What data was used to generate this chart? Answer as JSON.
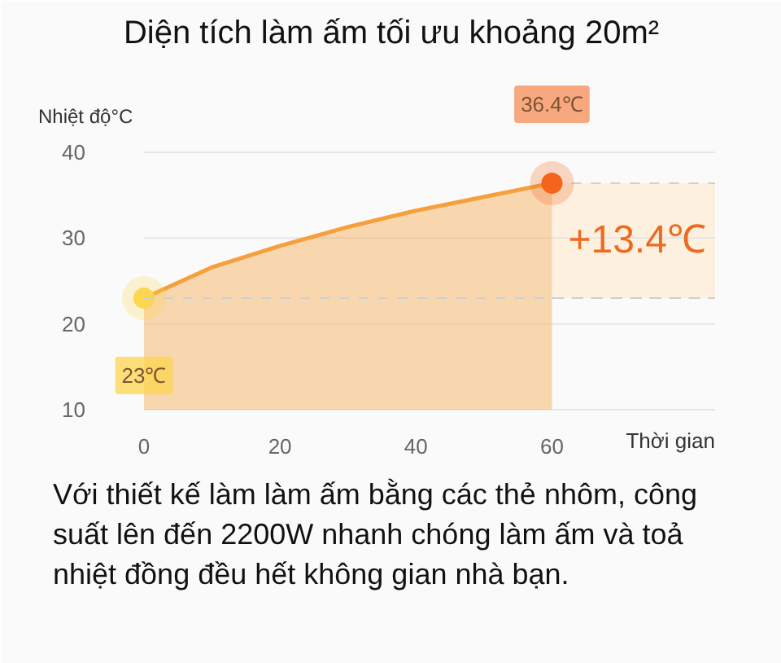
{
  "chart_data": {
    "type": "area",
    "title": "Diện tích làm ấm tối ưu khoảng 20m²",
    "xlabel": "Thời gian",
    "ylabel": "Nhiệt độ°C",
    "xlim": [
      0,
      84
    ],
    "ylim": [
      10,
      40
    ],
    "xticks": [
      0,
      20,
      40,
      60
    ],
    "yticks": [
      10,
      20,
      30,
      40
    ],
    "grid": "y",
    "series": [
      {
        "color": "#f5a03c",
        "x": [
          0,
          10,
          20,
          30,
          40,
          50,
          60
        ],
        "values": [
          23,
          26.6,
          29.1,
          31.3,
          33.2,
          34.8,
          36.4
        ]
      },
      {
        "type": "scatter",
        "marker": "circle",
        "x": [
          0,
          60
        ],
        "values": [
          23,
          36.4
        ],
        "colors": [
          "#fcd64e",
          "#f5641a"
        ],
        "value_labels": [
          "23℃",
          "36.4℃"
        ]
      }
    ],
    "ref_lines": [
      {
        "axis": "y",
        "value": 23,
        "line_style": "dashed",
        "color": "#cfcfcf"
      }
    ],
    "bands": [
      {
        "axis": "y",
        "from": 23,
        "to": 36.4,
        "label": "+13.4℃",
        "color": "#fdebd3"
      }
    ],
    "annotations": [
      "Với thiết kế làm làm ấm bằng các thẻ nhôm, công suất lên đến 2200W nhanh chóng làm ấm và toả nhiệt đồng đều hết không gian nhà bạn."
    ]
  }
}
